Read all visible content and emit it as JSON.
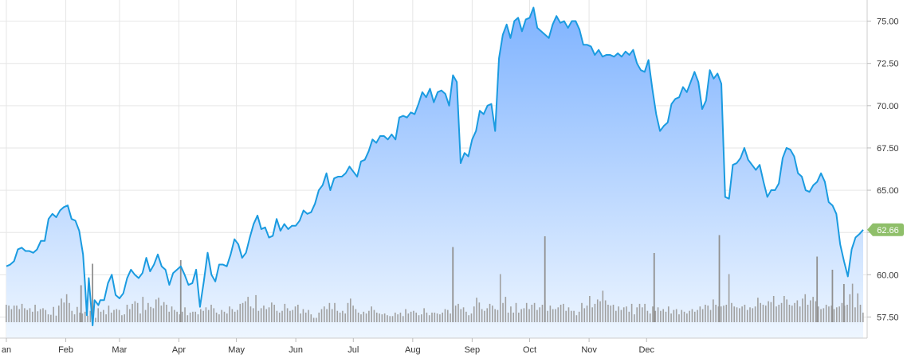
{
  "chart_data": {
    "type": "area",
    "title": "",
    "xlabel": "",
    "ylabel": "",
    "ylim": [
      56.25,
      76.25
    ],
    "y_ticks": [
      "57.50",
      "60.00",
      "62.50",
      "65.00",
      "67.50",
      "70.00",
      "72.50",
      "75.00"
    ],
    "y_axis_position": "right",
    "x_ticks": [
      "an",
      "Feb",
      "Mar",
      "Apr",
      "May",
      "Jun",
      "Jul",
      "Aug",
      "Sep",
      "Oct",
      "Nov",
      "Dec"
    ],
    "x_tick_days": [
      0,
      31,
      59,
      90,
      120,
      151,
      181,
      212,
      243,
      273,
      304,
      334
    ],
    "grid": true,
    "last_value_label": "62.66",
    "colors": {
      "line": "#1a9be0",
      "area_top": "#7fb3ff",
      "area_bottom": "#eef6ff",
      "volume": "#a0a0a0",
      "badge": "#8fbf6a",
      "grid": "#e6e6e6"
    },
    "series": [
      {
        "values": [
          [
            0,
            60.5
          ],
          [
            2,
            60.6
          ],
          [
            4,
            60.8
          ],
          [
            6,
            61.5
          ],
          [
            8,
            61.6
          ],
          [
            10,
            61.4
          ],
          [
            12,
            61.4
          ],
          [
            14,
            61.3
          ],
          [
            16,
            61.5
          ],
          [
            18,
            62.0
          ],
          [
            20,
            62.0
          ],
          [
            22,
            63.3
          ],
          [
            24,
            63.6
          ],
          [
            26,
            63.4
          ],
          [
            28,
            63.8
          ],
          [
            30,
            64.0
          ],
          [
            32,
            64.1
          ],
          [
            34,
            63.3
          ],
          [
            36,
            63.2
          ],
          [
            38,
            62.6
          ],
          [
            40,
            61.2
          ],
          [
            41,
            59.5
          ],
          [
            42,
            57.6
          ],
          [
            43,
            59.8
          ],
          [
            45,
            57.0
          ],
          [
            46,
            58.5
          ],
          [
            48,
            58.2
          ],
          [
            49,
            58.5
          ],
          [
            51,
            58.5
          ],
          [
            53,
            59.5
          ],
          [
            55,
            60.0
          ],
          [
            57,
            58.8
          ],
          [
            59,
            58.6
          ],
          [
            61,
            58.9
          ],
          [
            63,
            59.8
          ],
          [
            65,
            60.3
          ],
          [
            67,
            60.0
          ],
          [
            69,
            59.8
          ],
          [
            71,
            60.1
          ],
          [
            73,
            61.0
          ],
          [
            75,
            60.2
          ],
          [
            77,
            60.6
          ],
          [
            79,
            61.2
          ],
          [
            81,
            60.5
          ],
          [
            83,
            60.3
          ],
          [
            85,
            59.4
          ],
          [
            87,
            60.1
          ],
          [
            89,
            60.3
          ],
          [
            91,
            60.5
          ],
          [
            93,
            60.0
          ],
          [
            95,
            59.4
          ],
          [
            97,
            59.5
          ],
          [
            99,
            60.3
          ],
          [
            101,
            58.1
          ],
          [
            103,
            59.6
          ],
          [
            105,
            61.3
          ],
          [
            107,
            60.0
          ],
          [
            109,
            59.6
          ],
          [
            111,
            60.6
          ],
          [
            113,
            60.6
          ],
          [
            115,
            60.5
          ],
          [
            117,
            61.2
          ],
          [
            119,
            62.1
          ],
          [
            121,
            61.8
          ],
          [
            123,
            61.0
          ],
          [
            125,
            61.3
          ],
          [
            127,
            62.2
          ],
          [
            129,
            63.0
          ],
          [
            131,
            63.5
          ],
          [
            133,
            62.7
          ],
          [
            135,
            62.8
          ],
          [
            137,
            62.2
          ],
          [
            139,
            62.3
          ],
          [
            141,
            63.3
          ],
          [
            143,
            62.6
          ],
          [
            145,
            63.0
          ],
          [
            147,
            62.7
          ],
          [
            149,
            62.9
          ],
          [
            151,
            62.9
          ],
          [
            153,
            63.2
          ],
          [
            155,
            63.8
          ],
          [
            157,
            63.6
          ],
          [
            159,
            63.7
          ],
          [
            161,
            64.2
          ],
          [
            163,
            65.0
          ],
          [
            165,
            65.3
          ],
          [
            167,
            66.0
          ],
          [
            169,
            65.0
          ],
          [
            171,
            65.7
          ],
          [
            173,
            65.8
          ],
          [
            175,
            65.8
          ],
          [
            177,
            66.0
          ],
          [
            179,
            66.4
          ],
          [
            181,
            66.1
          ],
          [
            183,
            65.8
          ],
          [
            185,
            66.7
          ],
          [
            187,
            66.8
          ],
          [
            189,
            67.3
          ],
          [
            191,
            68.0
          ],
          [
            193,
            67.8
          ],
          [
            195,
            68.2
          ],
          [
            197,
            68.2
          ],
          [
            199,
            68.0
          ],
          [
            201,
            68.3
          ],
          [
            203,
            68.0
          ],
          [
            205,
            69.3
          ],
          [
            207,
            69.4
          ],
          [
            209,
            69.3
          ],
          [
            211,
            69.6
          ],
          [
            213,
            69.5
          ],
          [
            215,
            70.1
          ],
          [
            217,
            70.8
          ],
          [
            219,
            70.5
          ],
          [
            221,
            71.0
          ],
          [
            223,
            70.2
          ],
          [
            225,
            70.8
          ],
          [
            227,
            70.9
          ],
          [
            229,
            70.7
          ],
          [
            231,
            70.0
          ],
          [
            233,
            71.8
          ],
          [
            235,
            71.4
          ],
          [
            237,
            66.6
          ],
          [
            239,
            67.2
          ],
          [
            241,
            67.0
          ],
          [
            243,
            68.0
          ],
          [
            245,
            68.5
          ],
          [
            247,
            69.7
          ],
          [
            249,
            69.5
          ],
          [
            251,
            70.0
          ],
          [
            253,
            70.1
          ],
          [
            255,
            68.5
          ],
          [
            257,
            72.8
          ],
          [
            259,
            74.2
          ],
          [
            261,
            74.8
          ],
          [
            263,
            74.0
          ],
          [
            265,
            75.0
          ],
          [
            267,
            75.2
          ],
          [
            269,
            74.4
          ],
          [
            271,
            75.1
          ],
          [
            273,
            75.2
          ],
          [
            275,
            75.8
          ],
          [
            277,
            74.6
          ],
          [
            279,
            74.4
          ],
          [
            281,
            74.2
          ],
          [
            283,
            74.0
          ],
          [
            285,
            74.8
          ],
          [
            287,
            75.3
          ],
          [
            289,
            74.9
          ],
          [
            291,
            75.0
          ],
          [
            293,
            74.6
          ],
          [
            295,
            75.0
          ],
          [
            297,
            75.0
          ],
          [
            299,
            74.5
          ],
          [
            301,
            73.6
          ],
          [
            303,
            73.6
          ],
          [
            305,
            73.5
          ],
          [
            307,
            73.0
          ],
          [
            309,
            73.3
          ],
          [
            311,
            72.9
          ],
          [
            313,
            73.0
          ],
          [
            315,
            73.0
          ],
          [
            317,
            72.9
          ],
          [
            319,
            73.1
          ],
          [
            321,
            72.9
          ],
          [
            323,
            73.2
          ],
          [
            325,
            73.0
          ],
          [
            327,
            73.3
          ],
          [
            329,
            72.5
          ],
          [
            331,
            72.1
          ],
          [
            333,
            72.0
          ],
          [
            335,
            72.7
          ],
          [
            337,
            71.0
          ],
          [
            339,
            69.5
          ],
          [
            341,
            68.5
          ],
          [
            343,
            68.8
          ],
          [
            345,
            69.0
          ],
          [
            347,
            70.1
          ],
          [
            349,
            70.4
          ],
          [
            351,
            70.5
          ],
          [
            353,
            71.1
          ],
          [
            355,
            70.8
          ],
          [
            357,
            71.4
          ],
          [
            359,
            72.0
          ],
          [
            361,
            71.4
          ],
          [
            363,
            69.8
          ],
          [
            365,
            70.3
          ],
          [
            367,
            72.1
          ],
          [
            369,
            71.6
          ],
          [
            371,
            71.9
          ],
          [
            373,
            71.3
          ],
          [
            375,
            64.6
          ],
          [
            377,
            64.5
          ],
          [
            379,
            66.5
          ],
          [
            381,
            66.6
          ],
          [
            383,
            66.9
          ],
          [
            385,
            67.5
          ],
          [
            387,
            66.8
          ],
          [
            389,
            66.5
          ],
          [
            391,
            66.2
          ],
          [
            393,
            66.5
          ],
          [
            395,
            65.5
          ],
          [
            397,
            64.6
          ],
          [
            399,
            65.0
          ],
          [
            401,
            65.0
          ],
          [
            403,
            65.4
          ],
          [
            405,
            66.9
          ],
          [
            407,
            67.5
          ],
          [
            409,
            67.4
          ],
          [
            411,
            67.0
          ],
          [
            413,
            66.0
          ],
          [
            415,
            65.8
          ],
          [
            417,
            65.0
          ],
          [
            419,
            64.9
          ],
          [
            421,
            65.3
          ],
          [
            423,
            65.5
          ],
          [
            425,
            66.0
          ],
          [
            427,
            65.5
          ],
          [
            429,
            64.3
          ],
          [
            431,
            64.1
          ],
          [
            433,
            63.6
          ],
          [
            435,
            61.8
          ],
          [
            437,
            60.8
          ],
          [
            439,
            59.9
          ],
          [
            441,
            61.5
          ],
          [
            443,
            62.2
          ],
          [
            445,
            62.4
          ],
          [
            447,
            62.66
          ]
        ]
      }
    ],
    "volume": [
      40,
      38,
      30,
      38,
      38,
      30,
      42,
      32,
      28,
      32,
      24,
      40,
      25,
      30,
      32,
      28,
      18,
      17,
      35,
      15,
      38,
      54,
      45,
      64,
      44,
      26,
      18,
      35,
      22,
      20,
      24,
      15,
      26,
      20,
      10,
      32,
      24,
      28,
      18,
      38,
      22,
      28,
      30,
      28,
      16,
      18,
      40,
      30,
      42,
      48,
      44,
      20,
      58,
      28,
      44,
      35,
      32,
      52,
      56,
      38,
      46,
      40,
      24,
      36,
      28,
      24,
      18,
      24,
      34,
      16,
      22,
      24,
      24,
      18,
      30,
      26,
      34,
      28,
      40,
      32,
      22,
      18,
      28,
      24,
      20,
      36,
      30,
      24,
      28,
      42,
      44,
      48,
      58,
      36,
      32,
      62,
      26,
      32,
      38,
      30,
      34,
      45,
      40,
      26,
      22,
      26,
      42,
      32,
      26,
      28,
      36,
      40,
      20,
      30,
      22,
      28,
      18,
      10,
      10,
      22,
      30,
      36,
      30,
      44,
      30,
      44,
      26,
      22,
      26,
      20,
      44,
      54,
      38,
      30,
      22,
      18,
      24,
      20,
      26,
      36,
      28,
      22,
      20,
      18,
      20,
      16,
      14,
      14,
      22,
      18,
      22,
      14,
      30,
      20,
      24,
      26,
      22,
      16,
      18,
      32,
      22,
      16,
      22,
      22,
      20,
      18,
      22,
      30,
      28,
      20,
      30,
      38,
      42,
      30,
      34,
      24,
      16,
      20,
      36,
      56,
      45,
      30,
      26,
      32,
      42,
      38,
      30,
      28,
      110,
      44,
      58,
      22,
      36,
      22,
      44,
      22,
      30,
      32,
      44,
      30,
      40,
      44,
      28,
      34,
      40,
      50,
      26,
      38,
      30,
      30,
      34,
      40,
      42,
      26,
      34,
      26,
      26,
      16,
      24,
      44,
      32,
      38,
      60,
      34,
      42,
      52,
      48,
      72,
      50,
      40,
      38,
      40,
      26,
      36,
      28,
      34,
      36,
      24,
      42,
      18,
      34,
      42,
      34,
      42,
      26,
      20,
      36,
      26,
      34,
      26,
      30,
      24,
      36,
      20,
      28,
      30,
      18,
      28,
      24,
      20,
      26,
      30,
      24,
      28,
      36,
      30,
      40,
      38,
      28,
      52,
      40,
      36,
      36,
      38,
      40,
      110,
      44,
      36,
      34,
      32,
      36,
      40,
      28,
      34,
      32,
      36,
      56,
      44,
      40,
      38,
      48,
      46,
      60,
      36,
      40,
      44,
      60,
      52,
      40,
      38,
      44,
      50,
      36,
      54,
      64,
      40,
      50,
      58,
      48,
      36,
      30,
      32,
      40,
      36,
      38,
      30,
      34,
      36,
      44,
      38,
      40,
      64,
      88,
      34,
      66,
      40,
      22
    ],
    "volume_max": 110,
    "volume_spikes": [
      [
        39,
        62
      ],
      [
        45,
        98
      ],
      [
        91,
        104
      ],
      [
        233,
        126
      ],
      [
        281,
        144
      ],
      [
        338,
        116
      ],
      [
        372,
        146
      ],
      [
        423,
        110
      ],
      [
        431,
        88
      ],
      [
        437,
        64
      ]
    ]
  }
}
